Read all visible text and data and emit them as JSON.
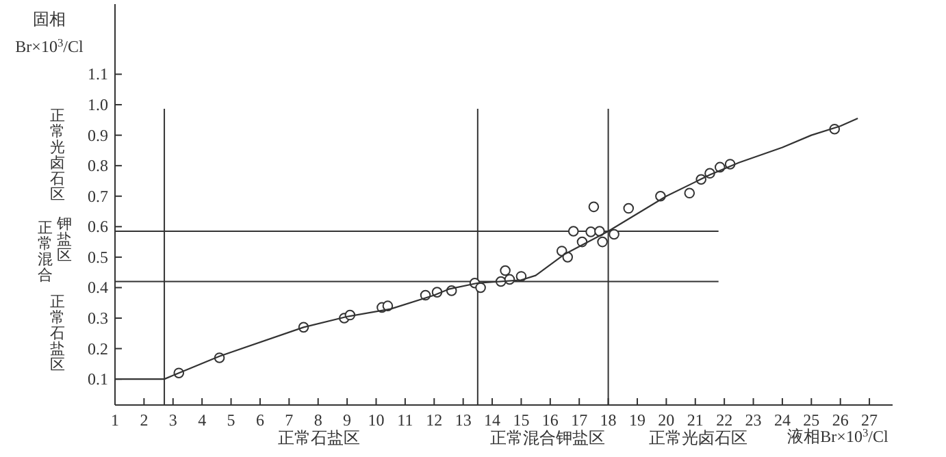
{
  "chart_data": {
    "type": "scatter",
    "ylabel": "固相\nBr×10$^{3}$/Cl",
    "xlabel": "液相Br×10$^{3}$/Cl",
    "annotations": [
      "正常石盐区",
      "正常混合钾盐区",
      "正常光卤石区",
      "正常光卤石区",
      "正常混合钾盐区",
      "正常石盐区"
    ],
    "xlim": [
      1,
      27.8
    ],
    "ylim": [
      0.015,
      1.33
    ],
    "xticks": [
      1,
      2,
      3,
      4,
      5,
      6,
      7,
      8,
      9,
      10,
      11,
      12,
      13,
      14,
      15,
      16,
      17,
      18,
      19,
      20,
      21,
      22,
      23,
      24,
      25,
      26,
      27
    ],
    "yticks": [
      0.1,
      0.2,
      0.3,
      0.4,
      0.5,
      0.6,
      0.7,
      0.8,
      0.9,
      {
        "value": 1,
        "label": "1.0"
      },
      1.1
    ],
    "grid": false,
    "ref_lines": [
      {
        "axis": "x",
        "value": 2.7,
        "color": "#333333"
      },
      {
        "axis": "x",
        "value": 13.5,
        "color": "#333333"
      },
      {
        "axis": "x",
        "value": 18,
        "color": "#333333"
      },
      {
        "axis": "y",
        "value": 0.42,
        "color": "#333333"
      },
      {
        "axis": "y",
        "value": 0.585,
        "color": "#333333"
      }
    ],
    "series": [
      {
        "color": "#333333",
        "marker": "circle",
        "x": [
          3.2,
          4.6,
          7.5,
          8.9,
          9.1,
          10.2,
          10.4,
          11.7,
          12.1,
          12.6,
          13.4,
          13.6,
          14.3,
          14.45,
          14.6,
          15.0,
          16.4,
          16.6,
          16.8,
          17.1,
          17.4,
          17.5,
          17.7,
          17.8,
          18.2,
          18.7,
          19.8,
          20.8,
          21.2,
          21.5,
          21.85,
          22.2,
          25.8
        ],
        "values": [
          0.12,
          0.17,
          0.27,
          0.3,
          0.31,
          0.335,
          0.34,
          0.375,
          0.385,
          0.39,
          0.415,
          0.4,
          0.42,
          0.456,
          0.427,
          0.437,
          0.52,
          0.5,
          0.585,
          0.55,
          0.583,
          0.665,
          0.585,
          0.55,
          0.575,
          0.66,
          0.7,
          0.71,
          0.755,
          0.775,
          0.795,
          0.805,
          0.92
        ]
      },
      {
        "type": "line",
        "color": "#333333",
        "marker": "none",
        "x": [
          1,
          2.7,
          3.2,
          4.6,
          7.5,
          9,
          10.5,
          12,
          12.5,
          13.5,
          15,
          15.5,
          16.5,
          18,
          20,
          21.5,
          22.5,
          24,
          25,
          26,
          26.6
        ],
        "values": [
          0.1,
          0.1,
          0.12,
          0.175,
          0.27,
          0.305,
          0.33,
          0.375,
          0.395,
          0.415,
          0.425,
          0.44,
          0.51,
          0.585,
          0.7,
          0.77,
          0.81,
          0.86,
          0.9,
          0.93,
          0.955
        ]
      }
    ]
  }
}
